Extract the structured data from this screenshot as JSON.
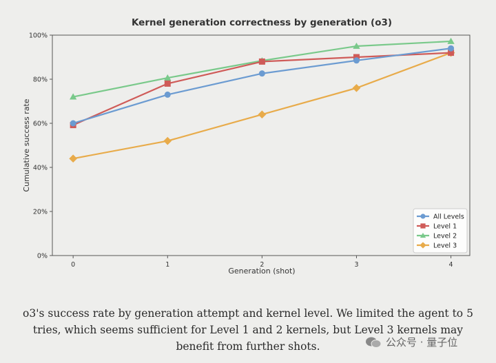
{
  "chart_data": {
    "type": "line",
    "title": "Kernel generation correctness by generation (o3)",
    "xlabel": "Generation (shot)",
    "ylabel": "Cumulative success rate",
    "x": [
      0,
      1,
      2,
      3,
      4
    ],
    "xticks": [
      "0",
      "1",
      "2",
      "3",
      "4"
    ],
    "xlim": [
      -0.22,
      4.2
    ],
    "ylim": [
      0,
      100
    ],
    "yticks": [
      "0%",
      "20%",
      "40%",
      "60%",
      "80%",
      "100%"
    ],
    "grid": false,
    "legend_position": "bottom-right",
    "series": [
      {
        "name": "All Levels",
        "values": [
          60,
          73,
          82.6,
          88.5,
          94
        ],
        "color": "#6b9bd1",
        "marker": "circle"
      },
      {
        "name": "Level 1",
        "values": [
          59.2,
          78,
          88,
          90,
          92
        ],
        "color": "#cf5b58",
        "marker": "square"
      },
      {
        "name": "Level 2",
        "values": [
          72,
          80.6,
          88.4,
          95,
          97.2
        ],
        "color": "#79c98a",
        "marker": "triangle"
      },
      {
        "name": "Level 3",
        "values": [
          44,
          52,
          64,
          76,
          92
        ],
        "color": "#e8ab4a",
        "marker": "diamond"
      }
    ]
  },
  "caption": "o3's success rate by generation attempt and kernel level. We limited the agent to 5 tries, which seems sufficient for Level 1 and 2 kernels, but Level 3 kernels may benefit from further shots.",
  "watermark": "公众号 · 量子位"
}
